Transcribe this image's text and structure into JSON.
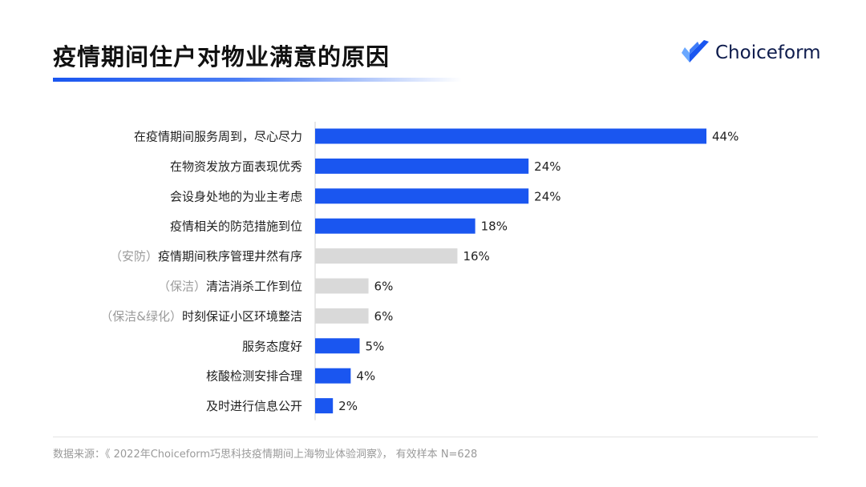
{
  "header": {
    "title": "疫情期间住户对物业满意的原因",
    "logo_text": "Choiceform"
  },
  "footer": {
    "source": "数据来源：《 2022年Choiceform巧思科技疫情期间上海物业体验洞察》， 有效样本 N=628"
  },
  "colors": {
    "highlight": "#1a56f0",
    "muted": "#d9d9d9",
    "prefix_text": "#9a9a9a",
    "label_text": "#222222"
  },
  "chart_data": {
    "type": "bar",
    "orientation": "horizontal",
    "categories": [
      {
        "prefix": "",
        "label": "在疫情期间服务周到，尽心尽力",
        "value": 44,
        "value_label": "44%",
        "highlight": true
      },
      {
        "prefix": "",
        "label": "在物资发放方面表现优秀",
        "value": 24,
        "value_label": "24%",
        "highlight": true
      },
      {
        "prefix": "",
        "label": "会设身处地的为业主考虑",
        "value": 24,
        "value_label": "24%",
        "highlight": true
      },
      {
        "prefix": "",
        "label": "疫情相关的防范措施到位",
        "value": 18,
        "value_label": "18%",
        "highlight": true
      },
      {
        "prefix": "（安防）",
        "label": "疫情期间秩序管理井然有序",
        "value": 16,
        "value_label": "16%",
        "highlight": false
      },
      {
        "prefix": "（保洁）",
        "label": "清洁消杀工作到位",
        "value": 6,
        "value_label": "6%",
        "highlight": false
      },
      {
        "prefix": "（保洁&绿化）",
        "label": "时刻保证小区环境整洁",
        "value": 6,
        "value_label": "6%",
        "highlight": false
      },
      {
        "prefix": "",
        "label": "服务态度好",
        "value": 5,
        "value_label": "5%",
        "highlight": true
      },
      {
        "prefix": "",
        "label": "核酸检测安排合理",
        "value": 4,
        "value_label": "4%",
        "highlight": true
      },
      {
        "prefix": "",
        "label": "及时进行信息公开",
        "value": 2,
        "value_label": "2%",
        "highlight": true
      }
    ],
    "xlim": [
      0,
      44
    ],
    "grid": false,
    "legend": "none"
  }
}
